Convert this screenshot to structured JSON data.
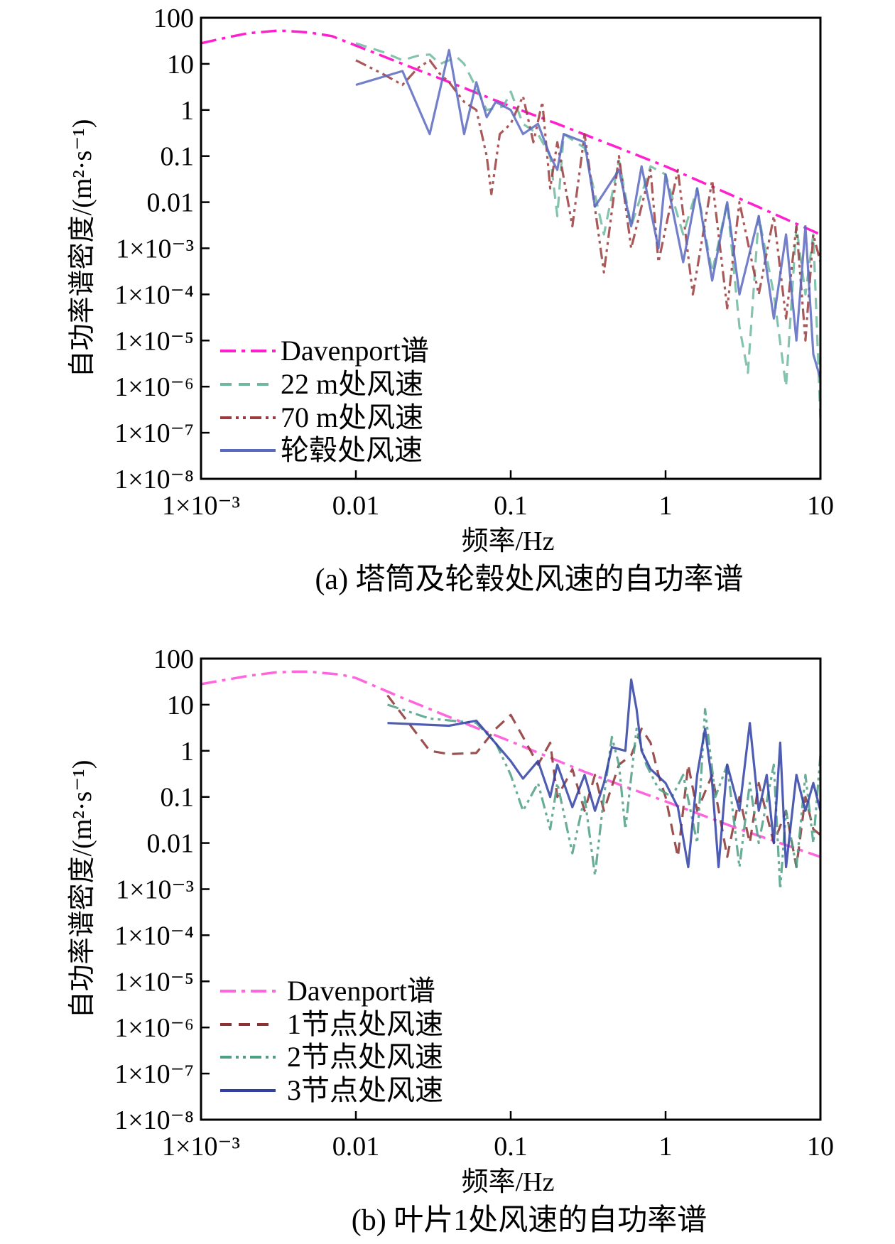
{
  "chart_data": [
    {
      "type": "line",
      "caption": "(a) 塔筒及轮毂处风速的自功率谱",
      "xlabel": "频率/Hz",
      "ylabel": "自功率谱密度/(m²·s⁻¹)",
      "xscale": "log",
      "yscale": "log",
      "xlim": [
        0.001,
        10
      ],
      "ylim": [
        1e-08,
        100
      ],
      "xticks": [
        0.001,
        0.01,
        0.1,
        1,
        10
      ],
      "xtick_labels": [
        "1×10⁻³",
        "0.01",
        "0.1",
        "1",
        "10"
      ],
      "yticks": [
        100,
        10,
        1,
        0.1,
        0.01,
        0.001,
        0.0001,
        1e-05,
        1e-06,
        1e-07,
        1e-08
      ],
      "ytick_labels": [
        "100",
        "10",
        "1",
        "0.1",
        "0.01",
        "1×10⁻³",
        "1×10⁻⁴",
        "1×10⁻⁵",
        "1×10⁻⁶",
        "1×10⁻⁷",
        "1×10⁻⁸"
      ],
      "grid": false,
      "legend_position": "bottom-left",
      "series": [
        {
          "name": "Davenport谱",
          "color": "#ff1fcf",
          "dash": "dashdot",
          "x": [
            0.001,
            0.0015,
            0.002,
            0.003,
            0.0035,
            0.005,
            0.007,
            0.01,
            0.02,
            0.05,
            0.1,
            0.2,
            0.5,
            1,
            3,
            10
          ],
          "y": [
            28,
            38,
            46,
            52,
            52,
            48,
            40,
            25,
            10,
            3,
            1.2,
            0.5,
            0.15,
            0.06,
            0.012,
            0.002
          ]
        },
        {
          "name": "22 m处风速",
          "color": "#6fb8a0",
          "dash": "dashed",
          "x": [
            0.01,
            0.015,
            0.02,
            0.025,
            0.03,
            0.035,
            0.045,
            0.05,
            0.06,
            0.07,
            0.09,
            0.1,
            0.12,
            0.15,
            0.18,
            0.2,
            0.22,
            0.3,
            0.4,
            0.5,
            0.6,
            0.8,
            1,
            1.3,
            1.6,
            2,
            2.5,
            3,
            3.4,
            4,
            5,
            6,
            7,
            8,
            9,
            10
          ],
          "y": [
            28,
            18,
            12,
            15,
            16,
            10,
            14,
            10,
            3,
            1,
            1.2,
            2.5,
            0.5,
            0.3,
            0.1,
            0.005,
            0.3,
            0.15,
            0.002,
            0.08,
            0.003,
            0.06,
            0.04,
            0.002,
            0.02,
            0.0003,
            0.01,
            2e-05,
            2e-06,
            0.005,
            0.0001,
            1e-06,
            0.003,
            0.0001,
            0.002,
            2e-07
          ]
        },
        {
          "name": "70 m处风速",
          "color": "#9a3c3c",
          "dash": "dashdotdot",
          "x": [
            0.01,
            0.015,
            0.02,
            0.025,
            0.03,
            0.035,
            0.04,
            0.05,
            0.06,
            0.07,
            0.075,
            0.085,
            0.1,
            0.12,
            0.14,
            0.16,
            0.18,
            0.2,
            0.25,
            0.3,
            0.4,
            0.5,
            0.6,
            0.8,
            0.9,
            1.2,
            1.5,
            2,
            2.5,
            3,
            4,
            5,
            6,
            7,
            8,
            9,
            10
          ],
          "y": [
            12,
            6,
            3.5,
            8,
            12,
            6,
            4,
            1.5,
            1,
            0.1,
            0.015,
            0.3,
            0.5,
            2,
            0.2,
            1.5,
            0.02,
            0.2,
            0.003,
            0.3,
            0.0003,
            0.1,
            0.001,
            0.05,
            0.0005,
            0.05,
            0.0001,
            0.03,
            5e-05,
            0.01,
            0.0001,
            0.005,
            3e-05,
            0.003,
            1e-05,
            0.002,
            0.0005
          ]
        },
        {
          "name": "轮毂处风速",
          "color": "#5a68bf",
          "dash": "solid",
          "x": [
            0.01,
            0.02,
            0.03,
            0.04,
            0.05,
            0.06,
            0.07,
            0.08,
            0.1,
            0.12,
            0.15,
            0.18,
            0.2,
            0.22,
            0.3,
            0.35,
            0.5,
            0.6,
            0.7,
            0.9,
            1,
            1.3,
            1.6,
            2,
            2.5,
            3,
            4,
            5,
            6,
            7,
            8,
            9,
            10
          ],
          "y": [
            3.5,
            7,
            0.3,
            20,
            0.3,
            4,
            0.7,
            1.5,
            1,
            0.3,
            0.5,
            0.1,
            0.05,
            0.3,
            0.2,
            0.008,
            0.05,
            0.003,
            0.06,
            0.001,
            0.04,
            0.0005,
            0.02,
            0.0002,
            0.01,
            0.0001,
            0.005,
            3e-05,
            0.002,
            1e-05,
            0.003,
            5e-06,
            1.5e-06
          ]
        }
      ]
    },
    {
      "type": "line",
      "caption": "(b) 叶片1处风速的自功率谱",
      "xlabel": "频率/Hz",
      "ylabel": "自功率谱密度/(m²·s⁻¹)",
      "xscale": "log",
      "yscale": "log",
      "xlim": [
        0.001,
        10
      ],
      "ylim": [
        1e-08,
        100
      ],
      "xticks": [
        0.001,
        0.01,
        0.1,
        1,
        10
      ],
      "xtick_labels": [
        "1×10⁻³",
        "0.01",
        "0.1",
        "1",
        "10"
      ],
      "yticks": [
        100,
        10,
        1,
        0.1,
        0.01,
        0.001,
        0.0001,
        1e-05,
        1e-06,
        1e-07,
        1e-08
      ],
      "ytick_labels": [
        "100",
        "10",
        "1",
        "0.1",
        "0.01",
        "1×10⁻³",
        "1×10⁻⁴",
        "1×10⁻⁵",
        "1×10⁻⁶",
        "1×10⁻⁷",
        "1×10⁻⁸"
      ],
      "grid": false,
      "legend_position": "bottom-left",
      "series": [
        {
          "name": "Davenport谱",
          "color": "#ff66dd",
          "dash": "dashdot",
          "x": [
            0.001,
            0.002,
            0.003,
            0.004,
            0.005,
            0.008,
            0.01,
            0.02,
            0.05,
            0.1,
            0.3,
            1,
            3,
            10
          ],
          "y": [
            28,
            42,
            50,
            52,
            52,
            45,
            38,
            14,
            4,
            1.6,
            0.35,
            0.08,
            0.02,
            0.005
          ]
        },
        {
          "name": "1节点处风速",
          "color": "#8b3232",
          "dash": "dashed",
          "x": [
            0.016,
            0.02,
            0.03,
            0.04,
            0.06,
            0.08,
            0.1,
            0.12,
            0.15,
            0.18,
            0.2,
            0.25,
            0.3,
            0.35,
            0.4,
            0.5,
            0.6,
            0.7,
            0.8,
            0.9,
            1,
            1.2,
            1.4,
            1.6,
            2,
            2.5,
            3,
            3.5,
            4,
            5,
            6,
            7,
            8,
            9,
            10
          ],
          "y": [
            16,
            6,
            1,
            0.85,
            0.9,
            3,
            6,
            2,
            0.5,
            1.5,
            0.1,
            0.4,
            0.05,
            0.3,
            0.05,
            0.5,
            0.8,
            3,
            1.5,
            0.3,
            0.1,
            0.005,
            0.5,
            0.05,
            0.3,
            0.005,
            0.1,
            0.01,
            0.2,
            0.01,
            0.05,
            0.003,
            0.1,
            0.02,
            0.015
          ]
        },
        {
          "name": "2节点处风速",
          "color": "#4f9e86",
          "dash": "dashdotdot",
          "x": [
            0.016,
            0.03,
            0.06,
            0.08,
            0.1,
            0.12,
            0.15,
            0.18,
            0.2,
            0.25,
            0.3,
            0.35,
            0.4,
            0.45,
            0.5,
            0.55,
            0.65,
            0.75,
            0.9,
            1.1,
            1.3,
            1.6,
            1.8,
            2.1,
            2.5,
            3,
            3.5,
            4,
            5,
            5.5,
            6,
            7,
            8,
            9,
            10
          ],
          "y": [
            10,
            5,
            4,
            1.5,
            0.3,
            0.05,
            0.2,
            0.02,
            0.2,
            0.006,
            0.1,
            0.002,
            0.1,
            2,
            0.5,
            0.02,
            3,
            0.5,
            0.15,
            0.1,
            0.3,
            0.01,
            8,
            0.1,
            0.5,
            0.003,
            0.2,
            0.01,
            0.5,
            0.001,
            0.05,
            0.003,
            0.3,
            0.01,
            0.8
          ]
        },
        {
          "name": "3节点处风速",
          "color": "#2f3fa3",
          "dash": "solid",
          "x": [
            0.016,
            0.04,
            0.06,
            0.1,
            0.12,
            0.15,
            0.18,
            0.2,
            0.25,
            0.3,
            0.35,
            0.4,
            0.45,
            0.55,
            0.6,
            0.65,
            0.7,
            0.8,
            1,
            1.2,
            1.4,
            1.6,
            1.8,
            2,
            2.2,
            2.5,
            3,
            3.5,
            4,
            4.5,
            5,
            5.5,
            6,
            7,
            8,
            9,
            10
          ],
          "y": [
            4,
            3.5,
            4.5,
            0.6,
            0.25,
            0.6,
            0.1,
            0.5,
            0.06,
            0.3,
            0.05,
            0.2,
            1.2,
            1,
            35,
            8,
            1,
            0.4,
            0.2,
            0.06,
            0.003,
            0.3,
            3,
            0.2,
            0.003,
            0.5,
            0.05,
            4,
            0.05,
            0.3,
            0.01,
            1.5,
            0.003,
            0.3,
            0.05,
            0.2,
            0.05
          ]
        }
      ]
    }
  ]
}
